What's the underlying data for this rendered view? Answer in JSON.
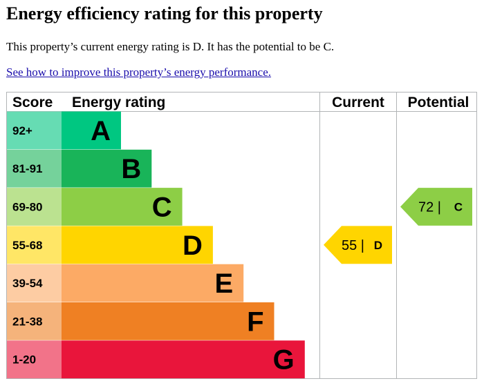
{
  "page": {
    "title": "Energy efficiency rating for this property",
    "summary": "This property’s current energy rating is D. It has the potential to be C.",
    "link_text": "See how to improve this property’s energy performance."
  },
  "chart_data": {
    "type": "bar",
    "headers": {
      "score": "Score",
      "rating": "Energy rating",
      "current": "Current",
      "potential": "Potential"
    },
    "bands": [
      {
        "letter": "A",
        "range": "92+",
        "min": 92,
        "color": "#00c781",
        "score_bg": "#66dcb3"
      },
      {
        "letter": "B",
        "range": "81-91",
        "min": 81,
        "color": "#19b459",
        "score_bg": "#75d29b"
      },
      {
        "letter": "C",
        "range": "69-80",
        "min": 69,
        "color": "#8dce46",
        "score_bg": "#bbe290"
      },
      {
        "letter": "D",
        "range": "55-68",
        "min": 55,
        "color": "#ffd500",
        "score_bg": "#ffe666"
      },
      {
        "letter": "E",
        "range": "39-54",
        "min": 39,
        "color": "#fcaa65",
        "score_bg": "#fdcca3"
      },
      {
        "letter": "F",
        "range": "21-38",
        "min": 21,
        "color": "#ef8023",
        "score_bg": "#f5b37b"
      },
      {
        "letter": "G",
        "range": "1-20",
        "min": 1,
        "color": "#e9153b",
        "score_bg": "#f27389"
      }
    ],
    "current": {
      "value": 55,
      "band": "D",
      "label": "55 |",
      "letter": "D",
      "color": "#ffd500"
    },
    "potential": {
      "value": 72,
      "band": "C",
      "label": "72 |",
      "letter": "C",
      "color": "#8dce46"
    }
  }
}
